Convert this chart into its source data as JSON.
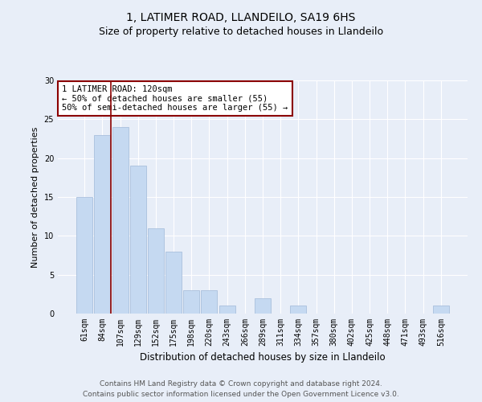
{
  "title": "1, LATIMER ROAD, LLANDEILO, SA19 6HS",
  "subtitle": "Size of property relative to detached houses in Llandeilo",
  "xlabel": "Distribution of detached houses by size in Llandeilo",
  "ylabel": "Number of detached properties",
  "bar_values": [
    15,
    23,
    24,
    19,
    11,
    8,
    3,
    3,
    1,
    0,
    2,
    0,
    1,
    0,
    0,
    0,
    0,
    0,
    0,
    0,
    1
  ],
  "bar_labels": [
    "61sqm",
    "84sqm",
    "107sqm",
    "129sqm",
    "152sqm",
    "175sqm",
    "198sqm",
    "220sqm",
    "243sqm",
    "266sqm",
    "289sqm",
    "311sqm",
    "334sqm",
    "357sqm",
    "380sqm",
    "402sqm",
    "425sqm",
    "448sqm",
    "471sqm",
    "493sqm",
    "516sqm"
  ],
  "bar_color": "#c5d9f1",
  "bar_edge_color": "#a0b8d8",
  "background_color": "#e8eef8",
  "grid_color": "#ffffff",
  "vline_x": 1.5,
  "vline_color": "#8b0000",
  "annotation_text": "1 LATIMER ROAD: 120sqm\n← 50% of detached houses are smaller (55)\n50% of semi-detached houses are larger (55) →",
  "annotation_box_color": "#ffffff",
  "annotation_box_edge": "#8b0000",
  "ylim": [
    0,
    30
  ],
  "yticks": [
    0,
    5,
    10,
    15,
    20,
    25,
    30
  ],
  "footer_line1": "Contains HM Land Registry data © Crown copyright and database right 2024.",
  "footer_line2": "Contains public sector information licensed under the Open Government Licence v3.0.",
  "title_fontsize": 10,
  "subtitle_fontsize": 9,
  "xlabel_fontsize": 8.5,
  "ylabel_fontsize": 8,
  "tick_fontsize": 7,
  "annotation_fontsize": 7.5,
  "footer_fontsize": 6.5
}
